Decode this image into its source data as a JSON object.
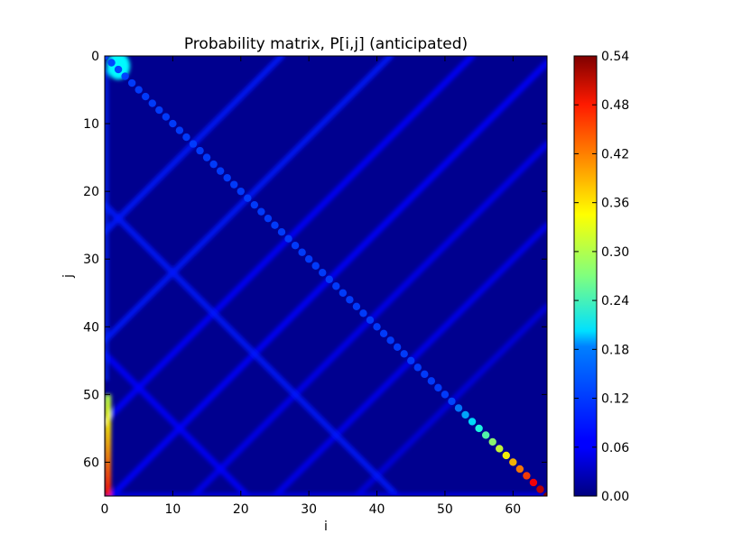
{
  "chart_data": {
    "type": "heatmap",
    "title": "Probability matrix, P[i,j] (anticipated)",
    "xlabel": "i",
    "ylabel": "j",
    "xlim": [
      0,
      65
    ],
    "ylim": [
      65,
      0
    ],
    "xticks": [
      "0",
      "10",
      "20",
      "30",
      "40",
      "50",
      "60"
    ],
    "xtick_values": [
      0,
      10,
      20,
      30,
      40,
      50,
      60
    ],
    "yticks": [
      "0",
      "10",
      "20",
      "30",
      "40",
      "50",
      "60"
    ],
    "ytick_values": [
      0,
      10,
      20,
      30,
      40,
      50,
      60
    ],
    "colormap": "jet",
    "colorbar": {
      "min": 0.0,
      "max": 0.54,
      "ticks": [
        "0.00",
        "0.06",
        "0.12",
        "0.18",
        "0.24",
        "0.30",
        "0.36",
        "0.42",
        "0.48",
        "0.54"
      ],
      "tick_values": [
        0.0,
        0.06,
        0.12,
        0.18,
        0.24,
        0.3,
        0.36,
        0.42,
        0.48,
        0.54
      ]
    },
    "grid": false,
    "features": {
      "main_diagonal": {
        "from": [
          0,
          0
        ],
        "to": [
          65,
          65
        ],
        "value_start": 0.1,
        "value_end": 0.54
      },
      "top_left_blob": {
        "i": 2,
        "j": 1.5,
        "value": 0.2
      },
      "anti_diagonals": [
        {
          "i_plus_j": 26,
          "value": 0.08
        },
        {
          "i_plus_j": 42,
          "value": 0.08
        },
        {
          "i_plus_j": 54,
          "value": 0.07
        },
        {
          "i_plus_j": 66,
          "value": 0.07
        },
        {
          "i_plus_j": 78,
          "value": 0.06
        },
        {
          "i_plus_j": 90,
          "value": 0.06
        },
        {
          "i_plus_j": 102,
          "value": 0.05
        }
      ],
      "parallel_diagonals": [
        {
          "j_minus_i": 22,
          "value": 0.08
        },
        {
          "j_minus_i": 44,
          "value": 0.07
        }
      ],
      "left_column": {
        "i": 0,
        "j_range": [
          50,
          65
        ],
        "value_start": 0.3,
        "value_end": 0.46
      },
      "bottom_row": {
        "j": 65,
        "value": 0.06
      }
    }
  }
}
